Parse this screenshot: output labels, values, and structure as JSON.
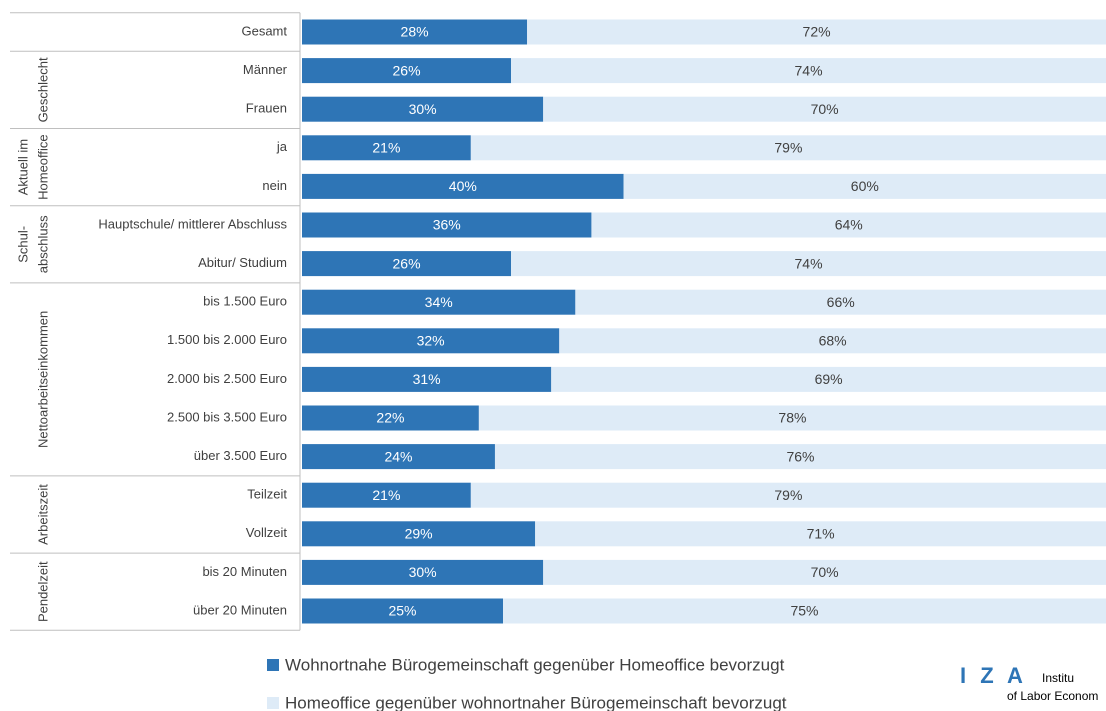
{
  "chart_data": {
    "type": "stacked-bar-horizontal",
    "categories": [
      "Gesamt",
      "Männer",
      "Frauen",
      "ja",
      "nein",
      "Hauptschule/ mittlerer Abschluss",
      "Abitur/ Studium",
      "bis 1.500 Euro",
      "1.500 bis 2.000 Euro",
      "2.000 bis 2.500 Euro",
      "2.500 bis 3.500 Euro",
      "über 3.500 Euro",
      "Teilzeit",
      "Vollzeit",
      "bis 20 Minuten",
      "über 20 Minuten"
    ],
    "groups": [
      {
        "label": null,
        "size": 1
      },
      {
        "label": [
          "Geschlecht"
        ],
        "size": 2
      },
      {
        "label": [
          "Aktuell im",
          "Homeoffice"
        ],
        "size": 2
      },
      {
        "label": [
          "Schul-",
          "abschluss"
        ],
        "size": 2
      },
      {
        "label": [
          "Nettoarbeitseinkommen"
        ],
        "size": 5
      },
      {
        "label": [
          "Arbeitszeit"
        ],
        "size": 2
      },
      {
        "label": [
          "Pendelzeit"
        ],
        "size": 2
      }
    ],
    "series": [
      {
        "name": "Wohnortnahe Bürogemeinschaft gegenüber Homeoffice bevorzugt",
        "color": "#2e75b6",
        "label_color": "#ffffff",
        "values": [
          28,
          26,
          30,
          21,
          40,
          36,
          26,
          34,
          32,
          31,
          22,
          24,
          21,
          29,
          30,
          25
        ],
        "value_labels": [
          "28%",
          "26%",
          "30%",
          "21%",
          "40%",
          "36%",
          "26%",
          "34%",
          "32%",
          "31%",
          "22%",
          "24%",
          "21%",
          "29%",
          "30%",
          "25%"
        ]
      },
      {
        "name": "Homeoffice gegenüber wohnortnaher Bürogemeinschaft bevorzugt",
        "color": "#deebf7",
        "label_color": "#404040",
        "values": [
          72,
          74,
          70,
          79,
          60,
          64,
          74,
          66,
          68,
          69,
          78,
          76,
          79,
          71,
          70,
          75
        ],
        "value_labels": [
          "72%",
          "74%",
          "70%",
          "79%",
          "60%",
          "64%",
          "74%",
          "66%",
          "68%",
          "69%",
          "78%",
          "76%",
          "79%",
          "71%",
          "70%",
          "75%"
        ]
      }
    ],
    "xlim": [
      0,
      100
    ],
    "logo": {
      "mark": "I Z A",
      "line1": "Institu",
      "line2": "of Labor Econom"
    }
  }
}
